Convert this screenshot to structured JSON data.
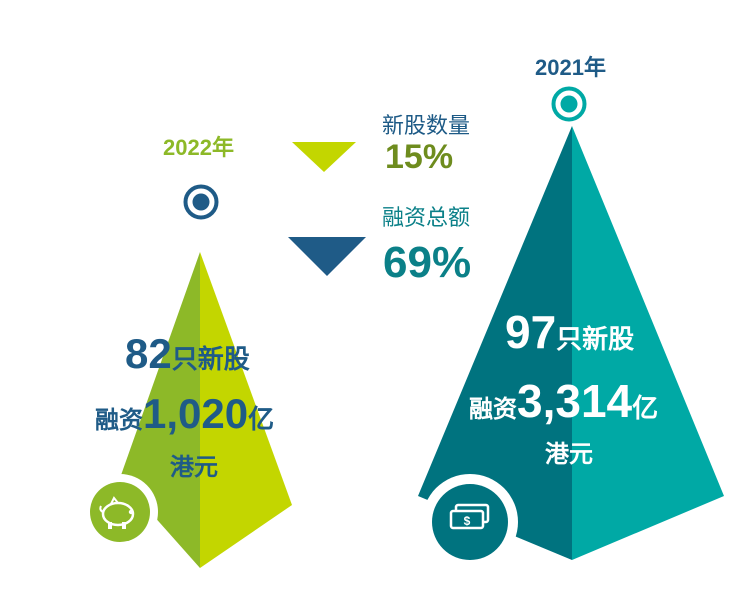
{
  "colors": {
    "lime": "#c3d600",
    "lime_dark": "#8db928",
    "teal": "#00a9a5",
    "teal_dark": "#00737f",
    "navy": "#1f5b87",
    "olive_text": "#6e8c1e",
    "teal_text": "#0b8088"
  },
  "icons": {
    "left_base": "piggy-bank-icon",
    "right_base": "banknote-icon",
    "target": "target-icon",
    "down": "triangle-down-icon"
  },
  "comparison": {
    "ipo_count": {
      "label": "新股数量",
      "value": "15%"
    },
    "funds_raised": {
      "label": "融资总额",
      "value": "69%"
    }
  },
  "y2022": {
    "year": "2022年",
    "count_num": "82",
    "count_unit": "只新股",
    "funds_prefix": "融资",
    "funds_num": "1,020",
    "funds_unit": "亿",
    "currency": "港元"
  },
  "y2021": {
    "year": "2021年",
    "count_num": "97",
    "count_unit": "只新股",
    "funds_prefix": "融资",
    "funds_num": "3,314",
    "funds_unit": "亿",
    "currency": "港元"
  }
}
